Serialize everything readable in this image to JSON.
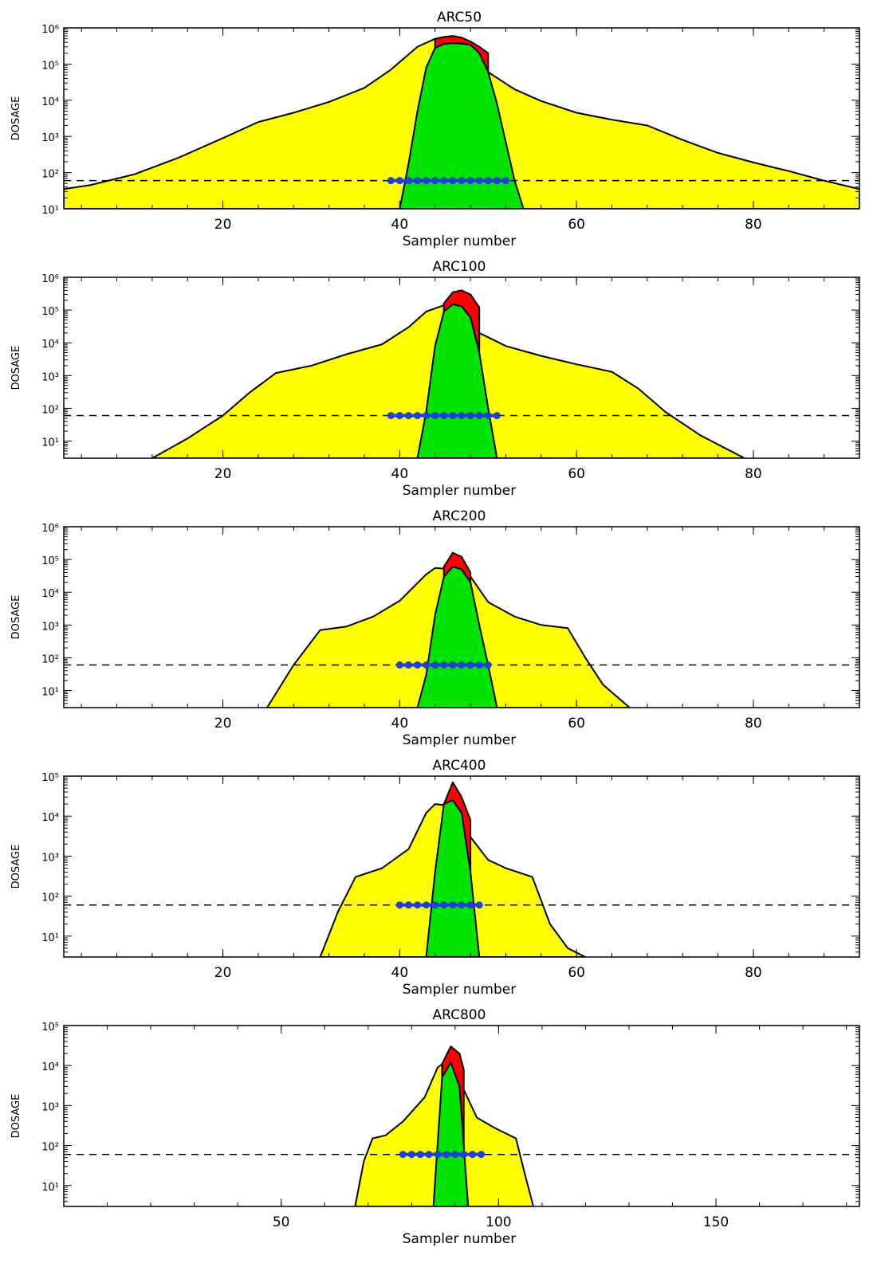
{
  "figure": {
    "background": "#ffffff"
  },
  "colors": {
    "yellow_area": "#ffff00",
    "green_area": "#00e400",
    "red_area": "#ff0000",
    "outline": "#000000",
    "markers": "#1f3fd6",
    "threshold_line": "#000000"
  },
  "chart_data": [
    {
      "type": "area",
      "title": "ARC50",
      "xlabel": "Sampler number",
      "ylabel": "DOSAGE",
      "xlim": [
        2,
        92
      ],
      "ylim": [
        10,
        1000000
      ],
      "yscale": "log",
      "xticks": [
        20,
        40,
        60,
        80
      ],
      "yticks": [
        10,
        100,
        1000,
        10000,
        100000,
        1000000
      ],
      "threshold": 60,
      "series": [
        {
          "fill": "#ffff00",
          "x": [
            2,
            5,
            10,
            15,
            20,
            24,
            28,
            32,
            36,
            39,
            42,
            44,
            46,
            48,
            50,
            53,
            56,
            60,
            64,
            68,
            72,
            76,
            80,
            84,
            88,
            92
          ],
          "y": [
            35,
            45,
            90,
            260,
            900,
            2500,
            4500,
            9000,
            22000,
            70000,
            300000,
            500000,
            430000,
            250000,
            60000,
            20000,
            9500,
            4500,
            2900,
            2000,
            800,
            350,
            190,
            110,
            60,
            35
          ]
        },
        {
          "fill": "#ff0000",
          "x": [
            44,
            45,
            46,
            47,
            48,
            49,
            50
          ],
          "y": [
            500000,
            560000,
            600000,
            540000,
            420000,
            300000,
            200000
          ]
        },
        {
          "fill": "#00e400",
          "x": [
            40,
            41,
            42,
            43,
            44,
            45,
            46,
            47,
            48,
            49,
            50,
            51,
            52,
            53,
            54
          ],
          "y": [
            10,
            180,
            5000,
            80000,
            280000,
            360000,
            380000,
            370000,
            340000,
            200000,
            60000,
            8000,
            700,
            60,
            10
          ]
        }
      ],
      "markers": {
        "x": [
          39,
          40,
          41,
          42,
          43,
          44,
          45,
          46,
          47,
          48,
          49,
          50,
          51,
          52
        ],
        "y": 60
      }
    },
    {
      "type": "area",
      "title": "ARC100",
      "xlabel": "Sampler number",
      "ylabel": "DOSAGE",
      "xlim": [
        2,
        92
      ],
      "ylim": [
        3,
        1000000
      ],
      "yscale": "log",
      "xticks": [
        20,
        40,
        60,
        80
      ],
      "yticks": [
        10,
        100,
        1000,
        10000,
        100000,
        1000000
      ],
      "threshold": 60,
      "series": [
        {
          "fill": "#ffff00",
          "x": [
            12,
            16,
            20,
            23,
            26,
            30,
            34,
            38,
            41,
            43,
            45,
            47,
            49,
            52,
            56,
            60,
            64,
            67,
            70,
            74,
            79
          ],
          "y": [
            3,
            12,
            60,
            300,
            1200,
            2000,
            4500,
            9000,
            30000,
            90000,
            140000,
            110000,
            20000,
            8000,
            4000,
            2200,
            1300,
            400,
            80,
            15,
            3
          ]
        },
        {
          "fill": "#ff0000",
          "x": [
            45,
            46,
            47,
            48,
            49
          ],
          "y": [
            160000,
            350000,
            400000,
            300000,
            120000
          ]
        },
        {
          "fill": "#00e400",
          "x": [
            42,
            43,
            44,
            45,
            46,
            47,
            48,
            49,
            50,
            51
          ],
          "y": [
            3,
            80,
            8000,
            90000,
            150000,
            130000,
            60000,
            5000,
            100,
            3
          ]
        }
      ],
      "markers": {
        "x": [
          39,
          40,
          41,
          42,
          43,
          44,
          45,
          46,
          47,
          48,
          49,
          50,
          51
        ],
        "y": 60
      }
    },
    {
      "type": "area",
      "title": "ARC200",
      "xlabel": "Sampler number",
      "ylabel": "DOSAGE",
      "xlim": [
        2,
        92
      ],
      "ylim": [
        3,
        1000000
      ],
      "yscale": "log",
      "xticks": [
        20,
        40,
        60,
        80
      ],
      "yticks": [
        10,
        100,
        1000,
        10000,
        100000,
        1000000
      ],
      "threshold": 60,
      "series": [
        {
          "fill": "#ffff00",
          "x": [
            25,
            28,
            31,
            34,
            37,
            40,
            43,
            44,
            46,
            48,
            50,
            53,
            56,
            59,
            61,
            63,
            66
          ],
          "y": [
            3,
            60,
            700,
            900,
            1800,
            5500,
            35000,
            55000,
            50000,
            30000,
            5000,
            1800,
            1000,
            800,
            100,
            15,
            3
          ]
        },
        {
          "fill": "#ff0000",
          "x": [
            45,
            46,
            47,
            48
          ],
          "y": [
            60000,
            160000,
            120000,
            40000
          ]
        },
        {
          "fill": "#00e400",
          "x": [
            42,
            43,
            44,
            45,
            46,
            47,
            48,
            49,
            50,
            51
          ],
          "y": [
            3,
            30,
            2000,
            30000,
            60000,
            50000,
            20000,
            1000,
            60,
            3
          ]
        }
      ],
      "markers": {
        "x": [
          40,
          41,
          42,
          43,
          44,
          45,
          46,
          47,
          48,
          49,
          50
        ],
        "y": 60
      }
    },
    {
      "type": "area",
      "title": "ARC400",
      "xlabel": "Sampler number",
      "ylabel": "DOSAGE",
      "xlim": [
        2,
        92
      ],
      "ylim": [
        3,
        100000
      ],
      "yscale": "log",
      "xticks": [
        20,
        40,
        60,
        80
      ],
      "yticks": [
        10,
        100,
        1000,
        10000,
        100000
      ],
      "threshold": 60,
      "series": [
        {
          "fill": "#ffff00",
          "x": [
            31,
            33,
            35,
            38,
            41,
            43,
            44,
            46,
            48,
            50,
            52,
            55,
            57,
            59,
            61
          ],
          "y": [
            3,
            40,
            300,
            500,
            1500,
            12000,
            20000,
            18000,
            3000,
            800,
            500,
            300,
            20,
            5,
            3
          ]
        },
        {
          "fill": "#ff0000",
          "x": [
            45,
            46,
            47,
            48
          ],
          "y": [
            20000,
            70000,
            30000,
            8000
          ]
        },
        {
          "fill": "#00e400",
          "x": [
            43,
            44,
            45,
            46,
            47,
            48,
            49
          ],
          "y": [
            3,
            400,
            20000,
            25000,
            12000,
            400,
            3
          ]
        }
      ],
      "markers": {
        "x": [
          40,
          41,
          42,
          43,
          44,
          45,
          46,
          47,
          48,
          49
        ],
        "y": 60
      }
    },
    {
      "type": "area",
      "title": "ARC800",
      "xlabel": "Sampler number",
      "ylabel": "DOSAGE",
      "xlim": [
        0,
        183
      ],
      "ylim": [
        3,
        100000
      ],
      "yscale": "log",
      "xticks": [
        50,
        100,
        150
      ],
      "yticks": [
        10,
        100,
        1000,
        10000,
        100000
      ],
      "threshold": 60,
      "series": [
        {
          "fill": "#ffff00",
          "x": [
            67,
            69,
            71,
            74,
            78,
            83,
            86,
            88,
            90,
            92,
            95,
            99,
            104,
            106,
            108
          ],
          "y": [
            3,
            40,
            150,
            180,
            400,
            1600,
            9000,
            13000,
            9000,
            2500,
            500,
            280,
            150,
            20,
            3
          ]
        },
        {
          "fill": "#ff0000",
          "x": [
            87,
            89,
            91,
            92
          ],
          "y": [
            11000,
            30000,
            20000,
            8000
          ]
        },
        {
          "fill": "#00e400",
          "x": [
            85,
            87,
            89,
            91,
            93
          ],
          "y": [
            3,
            5000,
            12000,
            3000,
            3
          ]
        }
      ],
      "markers": {
        "x": [
          78,
          80,
          82,
          84,
          86,
          88,
          90,
          92,
          94,
          96
        ],
        "y": 60
      }
    }
  ]
}
